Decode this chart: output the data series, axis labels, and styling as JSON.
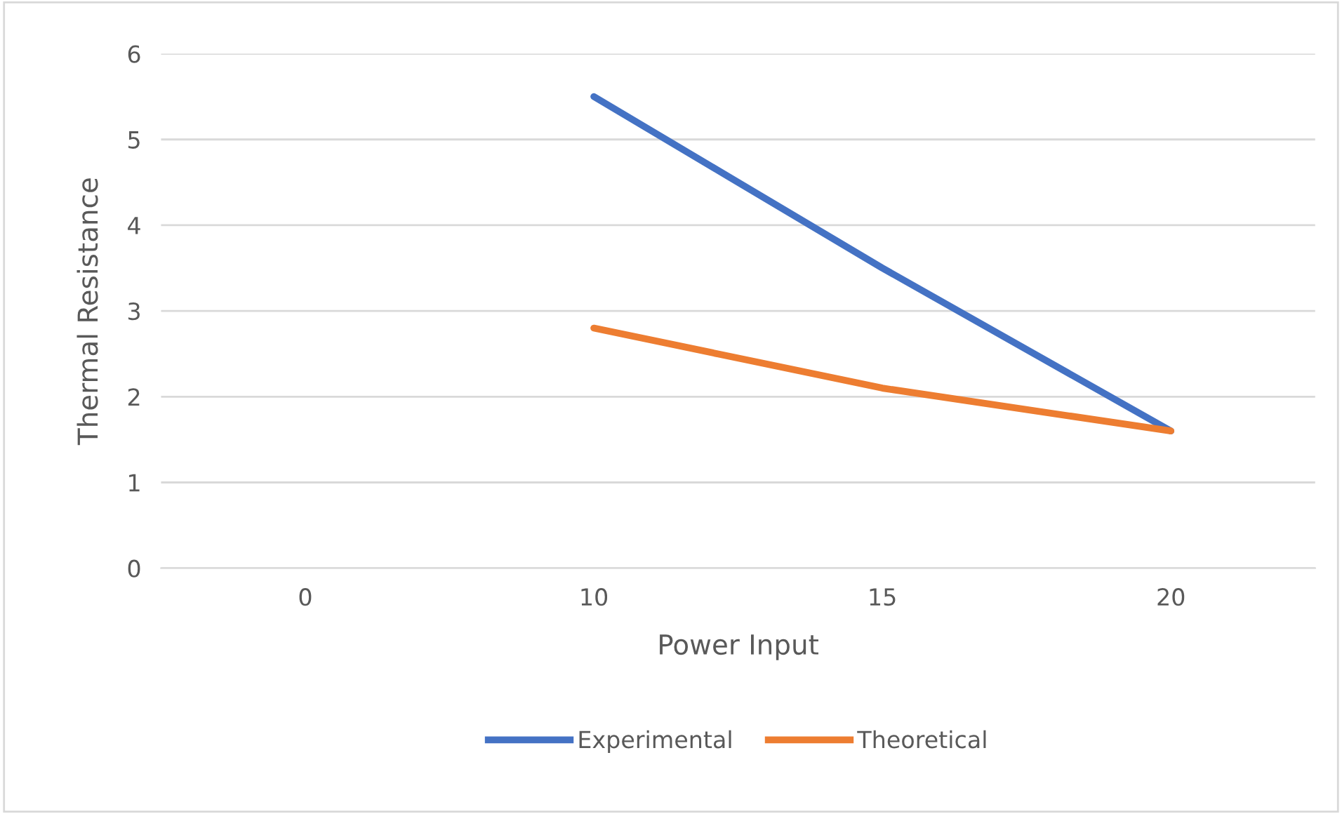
{
  "chart_data": {
    "type": "line",
    "xlabel": "Power Input",
    "ylabel": "Thermal Resistance",
    "categories": [
      "0",
      "10",
      "15",
      "20"
    ],
    "series": [
      {
        "name": "Experimental",
        "color": "#4472c4",
        "values": [
          null,
          5.5,
          3.5,
          1.6
        ]
      },
      {
        "name": "Theoretical",
        "color": "#ed7d31",
        "values": [
          null,
          2.8,
          2.1,
          1.6
        ]
      }
    ],
    "ylim": [
      0,
      6
    ],
    "yticks": [
      0,
      1,
      2,
      3,
      4,
      5,
      6
    ],
    "grid": "y",
    "legend": "bottom",
    "marker": "none",
    "line_style": "solid"
  }
}
